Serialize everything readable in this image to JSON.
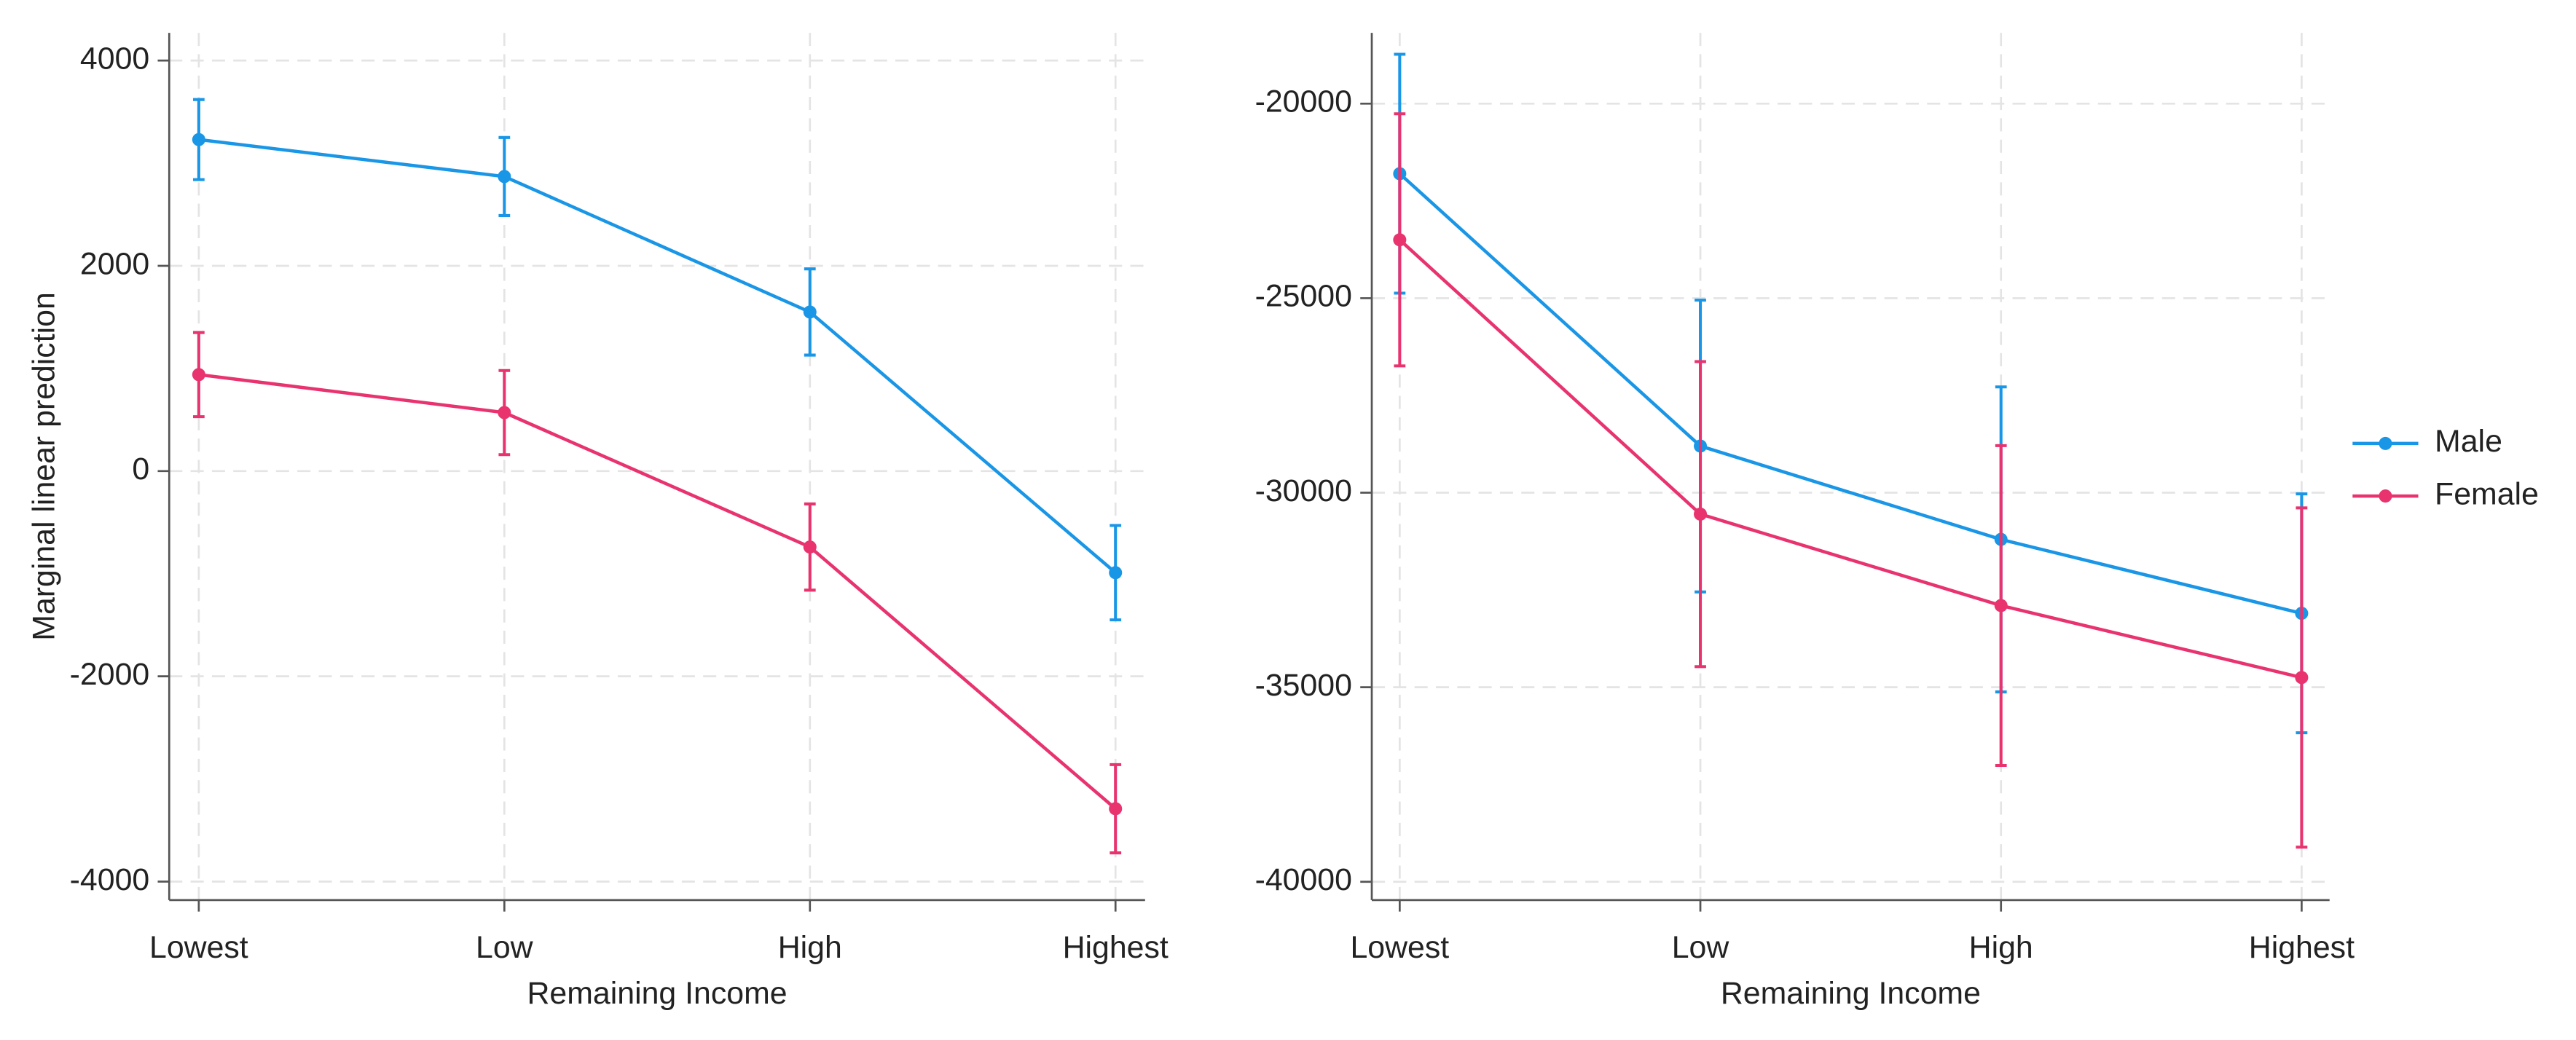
{
  "chart_data": [
    {
      "type": "line",
      "x_label": "Remaining Income",
      "y_label": "Marginal linear prediction",
      "categories": [
        "Lowest",
        "Low",
        "High",
        "Highest"
      ],
      "ylim": [
        -4180,
        4270
      ],
      "yticks": [
        4000,
        2000,
        0,
        -2000,
        -4000
      ],
      "grid": true,
      "series": [
        {
          "color": "#1a96e6",
          "values": [
            3230,
            2870,
            1550,
            -990
          ],
          "errors": [
            390,
            380,
            420,
            460
          ]
        },
        {
          "color": "#e8336f",
          "values": [
            940,
            570,
            -740,
            -3290
          ],
          "errors": [
            410,
            410,
            420,
            430
          ]
        }
      ]
    },
    {
      "type": "line",
      "x_label": "Remaining Income",
      "categories": [
        "Lowest",
        "Low",
        "High",
        "Highest"
      ],
      "ylim": [
        -40470,
        -18180
      ],
      "yticks": [
        -20000,
        -25000,
        -30000,
        -35000,
        -40000
      ],
      "grid": true,
      "legend": "right",
      "series": [
        {
          "name": "Male",
          "color": "#1a96e6",
          "values": [
            -21800,
            -28800,
            -31200,
            -33100
          ],
          "errors": [
            3070,
            3750,
            3920,
            3070
          ]
        },
        {
          "name": "Female",
          "color": "#e8336f",
          "values": [
            -23500,
            -30550,
            -32900,
            -34750
          ],
          "errors": [
            3240,
            3920,
            4110,
            4360
          ]
        }
      ]
    }
  ]
}
